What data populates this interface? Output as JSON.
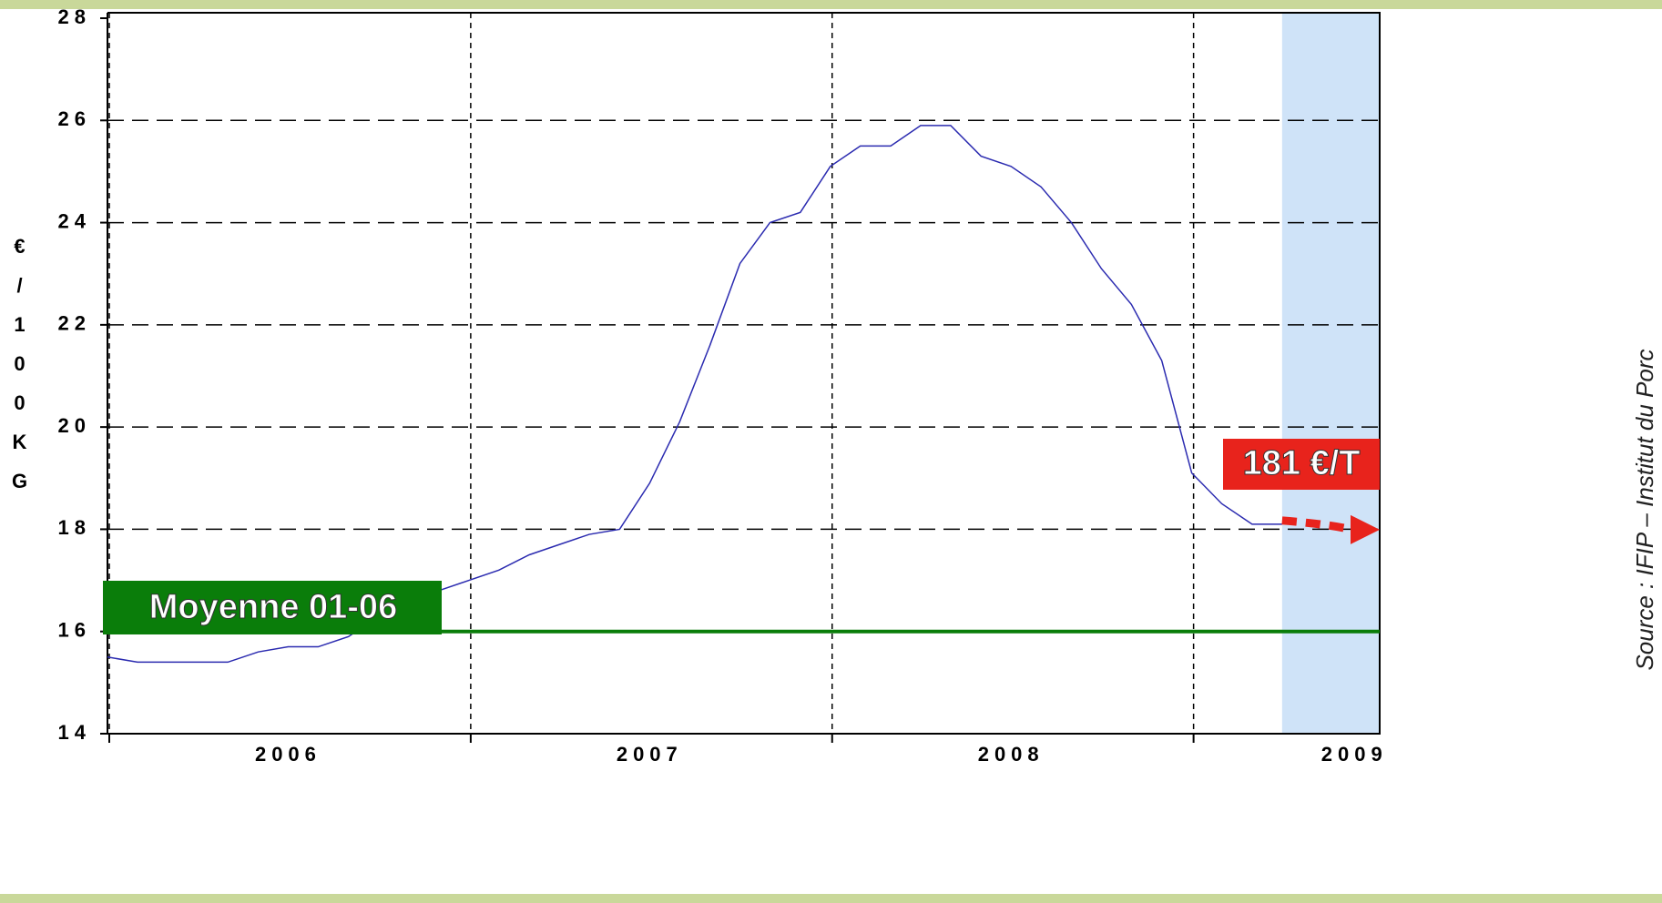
{
  "chart_data": {
    "type": "line",
    "y_axis_label": "€/100KG",
    "source": "Source : IFIP – Institut du Porc",
    "x": [
      2006.0,
      2006.083,
      2006.167,
      2006.25,
      2006.333,
      2006.417,
      2006.5,
      2006.583,
      2006.667,
      2006.75,
      2006.833,
      2006.917,
      2007.0,
      2007.083,
      2007.167,
      2007.25,
      2007.333,
      2007.417,
      2007.5,
      2007.583,
      2007.667,
      2007.75,
      2007.833,
      2007.917,
      2008.0,
      2008.083,
      2008.167,
      2008.25,
      2008.333,
      2008.417,
      2008.5,
      2008.583,
      2008.667,
      2008.75,
      2008.833,
      2008.917,
      2009.0,
      2009.083,
      2009.167,
      2009.25
    ],
    "series": [
      {
        "color": "#2b2bb0",
        "values": [
          15.5,
          15.4,
          15.4,
          15.4,
          15.4,
          15.6,
          15.7,
          15.7,
          15.9,
          16.3,
          16.6,
          16.8,
          17.0,
          17.2,
          17.5,
          17.7,
          17.9,
          18.0,
          18.9,
          20.1,
          21.6,
          23.2,
          24.0,
          24.2,
          25.1,
          25.5,
          25.5,
          25.9,
          25.9,
          25.3,
          25.1,
          24.7,
          24.0,
          23.1,
          22.4,
          21.3,
          19.1,
          18.5,
          18.1,
          18.1
        ]
      }
    ],
    "xlim": [
      2006,
      2009.52
    ],
    "xticks": [
      2006,
      2007,
      2008,
      2009
    ],
    "year_labels": [
      {
        "value": 2006.5,
        "label": "2006"
      },
      {
        "value": 2007.5,
        "label": "2007"
      },
      {
        "value": 2008.5,
        "label": "2008"
      },
      {
        "value": 2009.45,
        "label": "2009"
      }
    ],
    "ylim": [
      14,
      28
    ],
    "yticks": [
      14,
      16,
      18,
      20,
      22,
      24,
      26,
      28
    ],
    "grid": true,
    "forecast_band": {
      "from": 2009.25,
      "color": "#cfe3f8"
    },
    "reference_line": {
      "value": 16,
      "label": "Moyenne 01-06",
      "color": "#0a7d0a"
    },
    "annotation": {
      "label": "181 €/T",
      "value": 18.1,
      "color": "#e8231c"
    }
  }
}
